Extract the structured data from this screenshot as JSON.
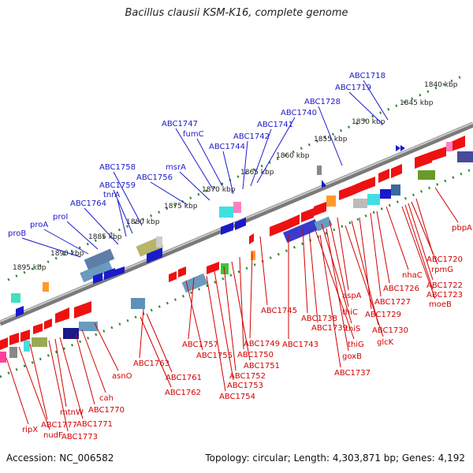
{
  "title": "Bacillus clausii KSM-K16, complete genome",
  "footer": {
    "accession": "Accession: NC_006582",
    "summary": "Topology: circular; Length: 4,303,871 bp; Genes: 4,192"
  },
  "colors": {
    "top_labels": "#1a1acc",
    "bottom_labels": "#d40000",
    "ticks": "#1f7a1f",
    "backbone": "#777777"
  },
  "scale_labels": [
    "1840 kbp",
    "1845 kbp",
    "1850 kbp",
    "1855 kbp",
    "1860 kbp",
    "1865 kbp",
    "1870 kbp",
    "1875 kbp",
    "1880 kbp",
    "1885 kbp",
    "1890 kbp",
    "1895 kbp"
  ],
  "top_genes": [
    "ABC1718",
    "ABC1719",
    "ABC1728",
    "ABC1740",
    "ABC1741",
    "ABC1742",
    "ABC1744",
    "fumC",
    "ABC1747",
    "msrA",
    "ABC1756",
    "ABC1758",
    "ABC1759",
    "tnrA",
    "ABC1764",
    "proI",
    "proA",
    "proB"
  ],
  "bottom_genes": [
    "pbpA",
    "ABC1720",
    "rpmG",
    "ABC1722",
    "ABC1723",
    "moeB",
    "nhaC",
    "ABC1726",
    "ABC1727",
    "aspA",
    "ABC1729",
    "thiC",
    "ABC1730",
    "thiS",
    "glcK",
    "ABC1738",
    "ABC1739",
    "thiG",
    "goxB",
    "ABC1737",
    "ABC1745",
    "ABC1743",
    "ABC1749",
    "ABC1750",
    "ABC1751",
    "ABC1752",
    "ABC1753",
    "ABC1754",
    "ABC1757",
    "ABC1755",
    "ABC1763",
    "ABC1761",
    "ABC1762",
    "asnO",
    "cah",
    "ABC1770",
    "mtnW",
    "ABC1771",
    "ABC1773",
    "ABC1777",
    "nudF",
    "ripX"
  ]
}
